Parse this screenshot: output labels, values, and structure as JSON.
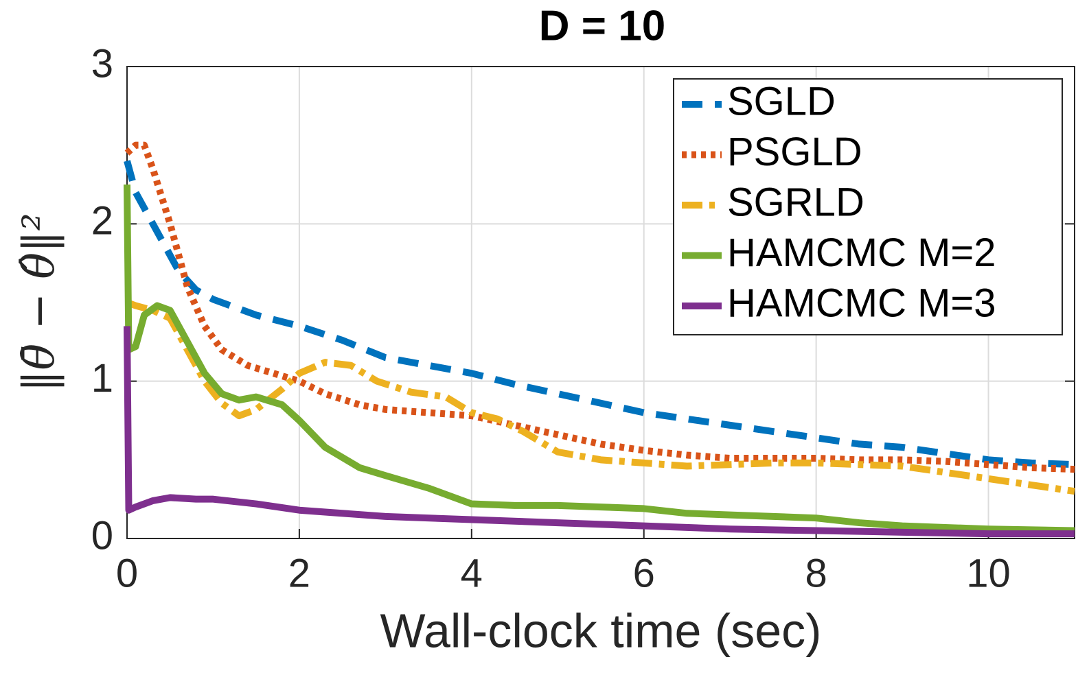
{
  "chart_data": {
    "type": "line",
    "title": "D = 10",
    "x_label": "Wall-clock time (sec)",
    "y_label": "‖θ̄ − θ̂‖²",
    "xlim": [
      0,
      11
    ],
    "ylim": [
      0,
      3
    ],
    "xticks": [
      0,
      2,
      4,
      6,
      8,
      10
    ],
    "yticks": [
      0,
      1,
      2,
      3
    ],
    "grid": true,
    "legend": "upper right",
    "series": [
      {
        "name": "SGLD",
        "color": "#0072bd",
        "style": "dashed",
        "x": [
          0,
          0.1,
          0.2,
          0.4,
          0.6,
          0.8,
          1,
          1.5,
          2,
          2.5,
          3,
          3.5,
          4,
          4.5,
          5,
          5.5,
          6,
          6.5,
          7,
          7.5,
          8,
          8.5,
          9,
          9.5,
          10,
          10.5,
          11
        ],
        "values": [
          2.4,
          2.2,
          2.1,
          1.9,
          1.7,
          1.58,
          1.52,
          1.42,
          1.35,
          1.26,
          1.15,
          1.1,
          1.05,
          0.98,
          0.92,
          0.86,
          0.8,
          0.76,
          0.72,
          0.68,
          0.64,
          0.6,
          0.58,
          0.54,
          0.5,
          0.48,
          0.47
        ]
      },
      {
        "name": "PSGLD",
        "color": "#d95319",
        "style": "dotted",
        "x": [
          0,
          0.1,
          0.2,
          0.3,
          0.5,
          0.7,
          0.9,
          1.1,
          1.4,
          1.7,
          2,
          2.3,
          2.7,
          3,
          3.5,
          4,
          4.5,
          5,
          5.5,
          6,
          6.5,
          7,
          7.5,
          8,
          8.5,
          9,
          9.5,
          10,
          10.5,
          11
        ],
        "values": [
          2.45,
          2.5,
          2.5,
          2.35,
          2.0,
          1.6,
          1.35,
          1.2,
          1.1,
          1.05,
          1.0,
          0.92,
          0.85,
          0.82,
          0.8,
          0.78,
          0.72,
          0.66,
          0.6,
          0.56,
          0.53,
          0.51,
          0.51,
          0.51,
          0.5,
          0.5,
          0.49,
          0.47,
          0.45,
          0.44
        ]
      },
      {
        "name": "SGRLD",
        "color": "#edb120",
        "style": "dashdot",
        "x": [
          0,
          0.1,
          0.3,
          0.5,
          0.7,
          0.9,
          1.1,
          1.3,
          1.5,
          1.8,
          2,
          2.3,
          2.6,
          2.9,
          3.3,
          3.7,
          4,
          4.3,
          4.6,
          5,
          5.5,
          6,
          6.5,
          7,
          7.5,
          8,
          8.5,
          9,
          9.5,
          10,
          10.5,
          11
        ],
        "values": [
          1.5,
          1.48,
          1.45,
          1.4,
          1.2,
          1.0,
          0.86,
          0.78,
          0.82,
          0.95,
          1.05,
          1.12,
          1.1,
          1.0,
          0.93,
          0.9,
          0.8,
          0.76,
          0.68,
          0.55,
          0.5,
          0.48,
          0.46,
          0.47,
          0.48,
          0.48,
          0.47,
          0.46,
          0.42,
          0.38,
          0.34,
          0.3
        ]
      },
      {
        "name": "HAMCMC M=2",
        "color": "#77ac30",
        "style": "solid",
        "x": [
          0,
          0.02,
          0.1,
          0.2,
          0.35,
          0.5,
          0.7,
          0.9,
          1.1,
          1.3,
          1.5,
          1.8,
          2,
          2.3,
          2.7,
          3,
          3.5,
          4,
          4.5,
          5,
          5.5,
          6,
          6.5,
          7,
          7.5,
          8,
          8.5,
          9,
          9.5,
          10,
          11
        ],
        "values": [
          2.25,
          1.2,
          1.22,
          1.42,
          1.48,
          1.45,
          1.25,
          1.05,
          0.92,
          0.88,
          0.9,
          0.85,
          0.75,
          0.58,
          0.45,
          0.4,
          0.32,
          0.22,
          0.21,
          0.21,
          0.2,
          0.19,
          0.16,
          0.15,
          0.14,
          0.13,
          0.1,
          0.08,
          0.07,
          0.06,
          0.05
        ]
      },
      {
        "name": "HAMCMC M=3",
        "color": "#7e2f8e",
        "style": "solid",
        "x": [
          0,
          0.02,
          0.1,
          0.3,
          0.5,
          0.8,
          1,
          1.5,
          2,
          3,
          4,
          5,
          6,
          7,
          8,
          9,
          10,
          11
        ],
        "values": [
          1.35,
          0.18,
          0.2,
          0.24,
          0.26,
          0.25,
          0.25,
          0.22,
          0.18,
          0.14,
          0.12,
          0.1,
          0.08,
          0.06,
          0.05,
          0.04,
          0.03,
          0.03
        ]
      }
    ]
  }
}
